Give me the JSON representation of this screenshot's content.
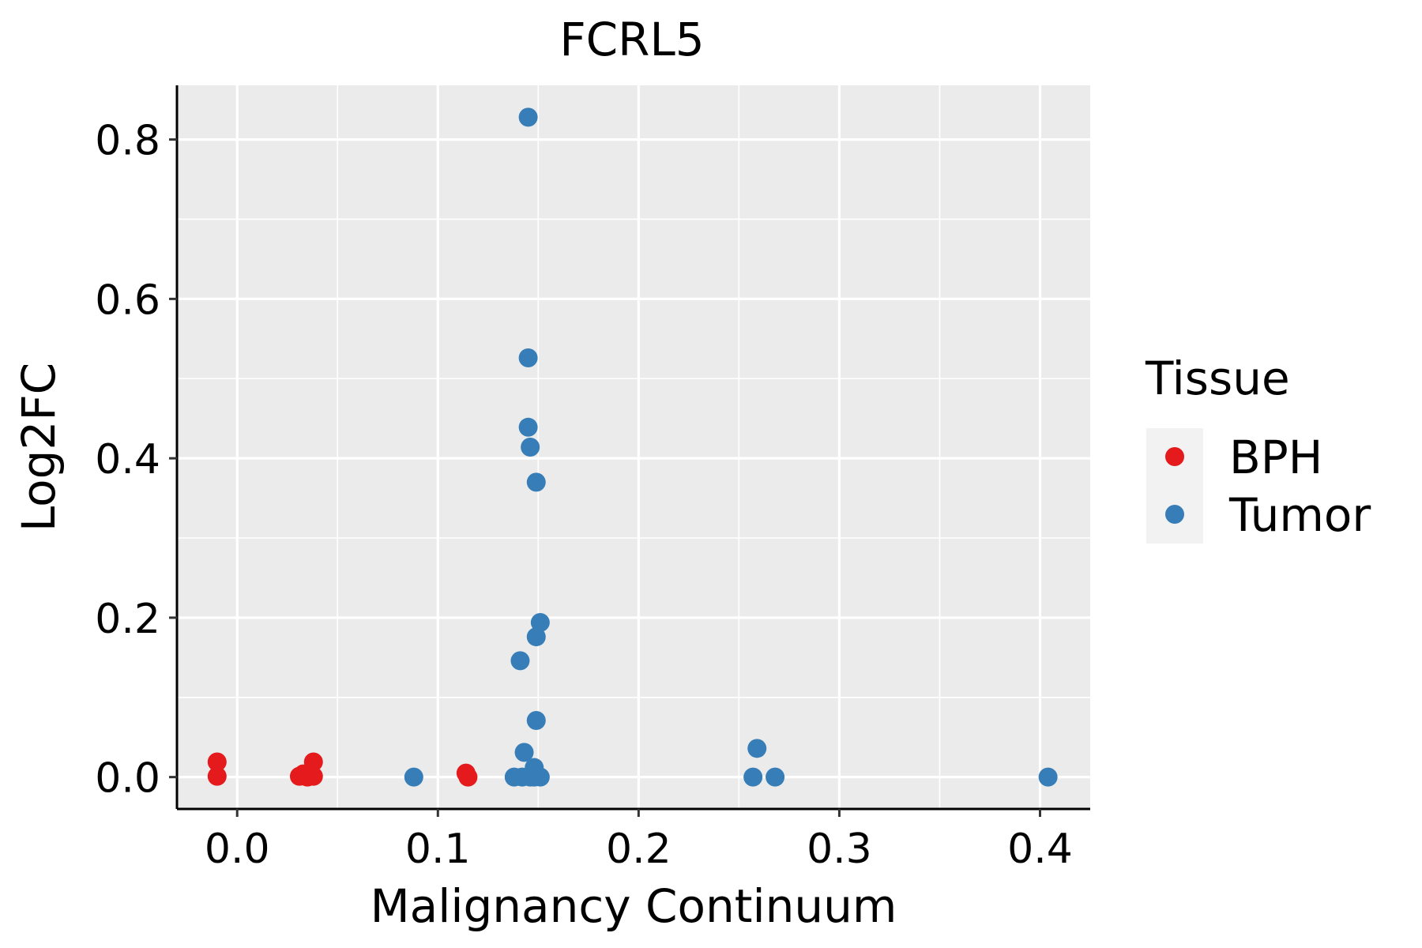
{
  "chart_data": {
    "type": "scatter",
    "title": "FCRL5",
    "xlabel": "Malignancy Continuum",
    "ylabel": "Log2FC",
    "xlim": [
      -0.03,
      0.425
    ],
    "ylim": [
      -0.04,
      0.868
    ],
    "xticks": [
      0.0,
      0.1,
      0.2,
      0.3,
      0.4
    ],
    "xtick_labels": [
      "0.0",
      "0.1",
      "0.2",
      "0.3",
      "0.4"
    ],
    "yticks": [
      0.0,
      0.2,
      0.4,
      0.6,
      0.8
    ],
    "ytick_labels": [
      "0.0",
      "0.2",
      "0.4",
      "0.6",
      "0.8"
    ],
    "grid": true,
    "legend": {
      "title": "Tissue",
      "position": "right"
    },
    "series": [
      {
        "name": "BPH",
        "color": "#E41A1C",
        "points": [
          {
            "x": -0.01,
            "y": 0.019
          },
          {
            "x": -0.01,
            "y": 0.001
          },
          {
            "x": 0.031,
            "y": 0.001
          },
          {
            "x": 0.033,
            "y": 0.004
          },
          {
            "x": 0.035,
            "y": 0.0
          },
          {
            "x": 0.036,
            "y": 0.002
          },
          {
            "x": 0.038,
            "y": 0.019
          },
          {
            "x": 0.038,
            "y": 0.001
          },
          {
            "x": 0.114,
            "y": 0.005
          },
          {
            "x": 0.115,
            "y": 0.0
          }
        ]
      },
      {
        "name": "Tumor",
        "color": "#377EB8",
        "points": [
          {
            "x": 0.145,
            "y": 0.828
          },
          {
            "x": 0.145,
            "y": 0.526
          },
          {
            "x": 0.145,
            "y": 0.439
          },
          {
            "x": 0.146,
            "y": 0.414
          },
          {
            "x": 0.149,
            "y": 0.37
          },
          {
            "x": 0.151,
            "y": 0.194
          },
          {
            "x": 0.149,
            "y": 0.176
          },
          {
            "x": 0.141,
            "y": 0.146
          },
          {
            "x": 0.149,
            "y": 0.071
          },
          {
            "x": 0.143,
            "y": 0.031
          },
          {
            "x": 0.148,
            "y": 0.012
          },
          {
            "x": 0.088,
            "y": 0.0
          },
          {
            "x": 0.138,
            "y": 0.0
          },
          {
            "x": 0.142,
            "y": 0.0
          },
          {
            "x": 0.146,
            "y": 0.0
          },
          {
            "x": 0.148,
            "y": 0.0
          },
          {
            "x": 0.151,
            "y": 0.0
          },
          {
            "x": 0.259,
            "y": 0.036
          },
          {
            "x": 0.257,
            "y": 0.0
          },
          {
            "x": 0.268,
            "y": 0.0
          },
          {
            "x": 0.404,
            "y": 0.0
          }
        ]
      }
    ]
  }
}
